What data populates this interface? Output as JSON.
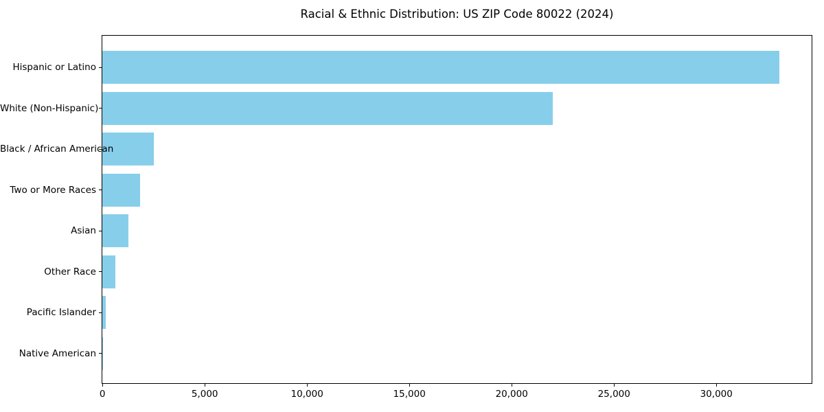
{
  "title": "Racial & Ethnic Distribution: US ZIP Code 80022 (2024)",
  "chart_data": {
    "type": "bar",
    "orientation": "horizontal",
    "title": "Racial & Ethnic Distribution: US ZIP Code 80022 (2024)",
    "categories": [
      "Hispanic or Latino",
      "White (Non-Hispanic)",
      "Black / African American",
      "Two or More Races",
      "Asian",
      "Other Race",
      "Pacific Islander",
      "Native American"
    ],
    "values": [
      33100,
      22000,
      2530,
      1830,
      1260,
      650,
      160,
      30
    ],
    "xlabel": "",
    "ylabel": "",
    "xlim": [
      0,
      34650
    ],
    "xticks": [
      0,
      5000,
      10000,
      15000,
      20000,
      25000,
      30000
    ],
    "xtick_labels": [
      "0",
      "5,000",
      "10,000",
      "15,000",
      "20,000",
      "25,000",
      "30,000"
    ],
    "bar_color": "#87CEEB",
    "spine_color": "#000000",
    "text_color": "#000000",
    "background_color": "#ffffff",
    "grid": false,
    "legend": "none"
  }
}
